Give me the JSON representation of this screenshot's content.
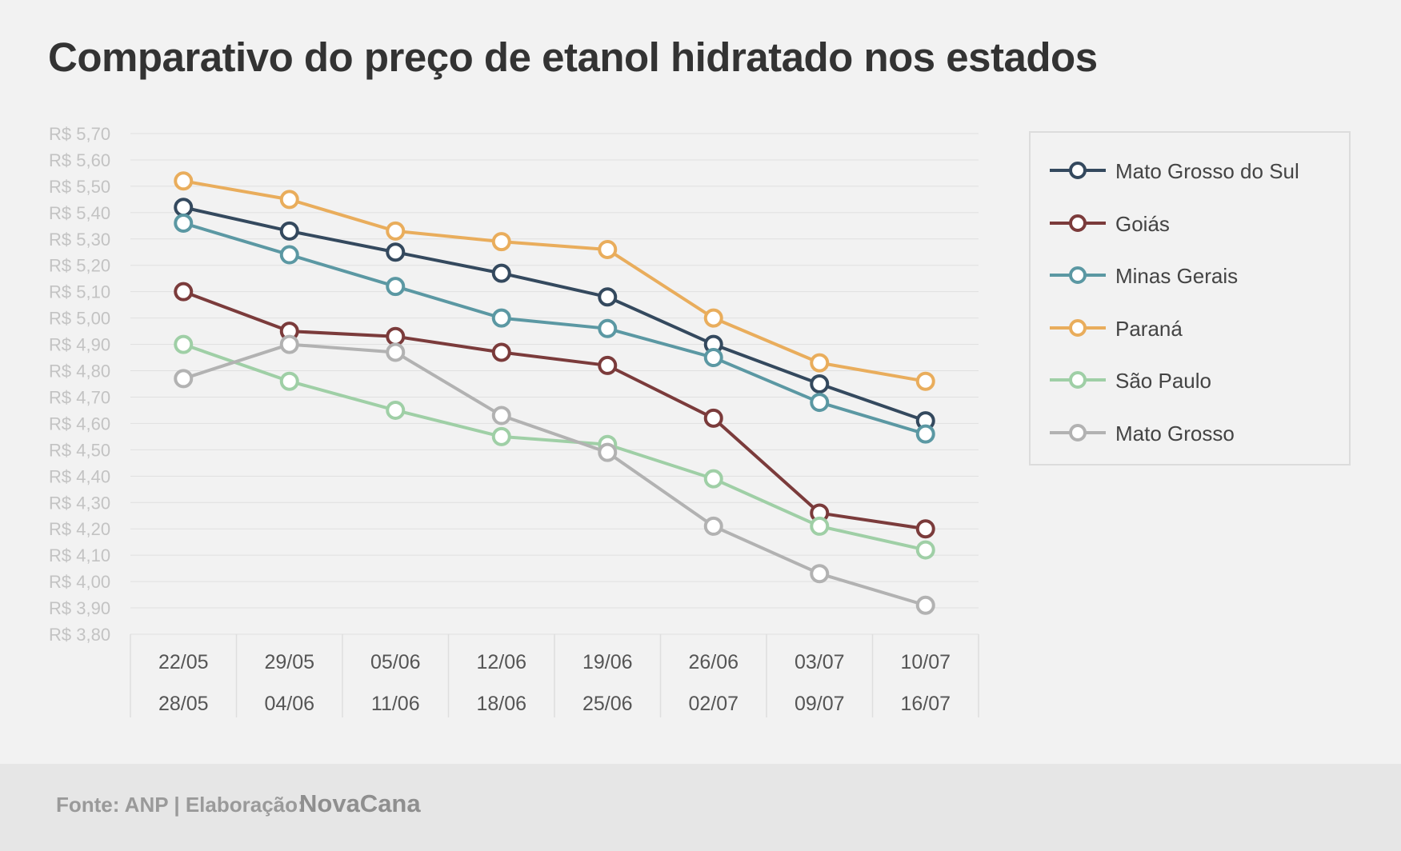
{
  "title": "Comparativo do preço de etanol hidratado nos estados",
  "footer": {
    "source": "Fonte: ANP | Elaboração:",
    "brand": "NovaCana"
  },
  "chart_data": {
    "type": "line",
    "title": "Comparativo do preço de etanol hidratado nos estados",
    "xlabel": "",
    "ylabel": "",
    "categories": [
      "22/05 28/05",
      "29/05 04/06",
      "05/06 11/06",
      "12/06 18/06",
      "19/06 25/06",
      "26/06 02/07",
      "03/07 09/07",
      "10/07 16/07"
    ],
    "x_tick_labels": [
      [
        "22/05",
        "28/05"
      ],
      [
        "29/05",
        "04/06"
      ],
      [
        "05/06",
        "11/06"
      ],
      [
        "12/06",
        "18/06"
      ],
      [
        "19/06",
        "25/06"
      ],
      [
        "26/06",
        "02/07"
      ],
      [
        "03/07",
        "09/07"
      ],
      [
        "10/07",
        "16/07"
      ]
    ],
    "ylim": [
      3.8,
      5.7
    ],
    "y_ticks": [
      3.8,
      3.9,
      4.0,
      4.1,
      4.2,
      4.3,
      4.4,
      4.5,
      4.6,
      4.7,
      4.8,
      4.9,
      5.0,
      5.1,
      5.2,
      5.3,
      5.4,
      5.5,
      5.6,
      5.7
    ],
    "y_tick_labels": [
      "R$ 3,80",
      "R$ 3,90",
      "R$ 4,00",
      "R$ 4,10",
      "R$ 4,20",
      "R$ 4,30",
      "R$ 4,40",
      "R$ 4,50",
      "R$ 4,60",
      "R$ 4,70",
      "R$ 4,80",
      "R$ 4,90",
      "R$ 5,00",
      "R$ 5,10",
      "R$ 5,20",
      "R$ 5,30",
      "R$ 5,40",
      "R$ 5,50",
      "R$ 5,60",
      "R$ 5,70"
    ],
    "grid": true,
    "legend": "right",
    "series": [
      {
        "name": "Mato Grosso do Sul",
        "color": "#34495e",
        "values": [
          5.42,
          5.33,
          5.25,
          5.17,
          5.08,
          4.9,
          4.75,
          4.61
        ]
      },
      {
        "name": "Goiás",
        "color": "#7b3b3b",
        "values": [
          5.1,
          4.95,
          4.93,
          4.87,
          4.82,
          4.62,
          4.26,
          4.2
        ]
      },
      {
        "name": "Minas Gerais",
        "color": "#5b98a3",
        "values": [
          5.36,
          5.24,
          5.12,
          5.0,
          4.96,
          4.85,
          4.68,
          4.56
        ]
      },
      {
        "name": "Paraná",
        "color": "#e9ad5c",
        "values": [
          5.52,
          5.45,
          5.33,
          5.29,
          5.26,
          5.0,
          4.83,
          4.76
        ]
      },
      {
        "name": "São Paulo",
        "color": "#9fcfa6",
        "values": [
          4.9,
          4.76,
          4.65,
          4.55,
          4.52,
          4.39,
          4.21,
          4.12
        ]
      },
      {
        "name": "Mato Grosso",
        "color": "#b2b2b2",
        "values": [
          4.77,
          4.9,
          4.87,
          4.63,
          4.49,
          4.21,
          4.03,
          3.91
        ]
      }
    ]
  }
}
